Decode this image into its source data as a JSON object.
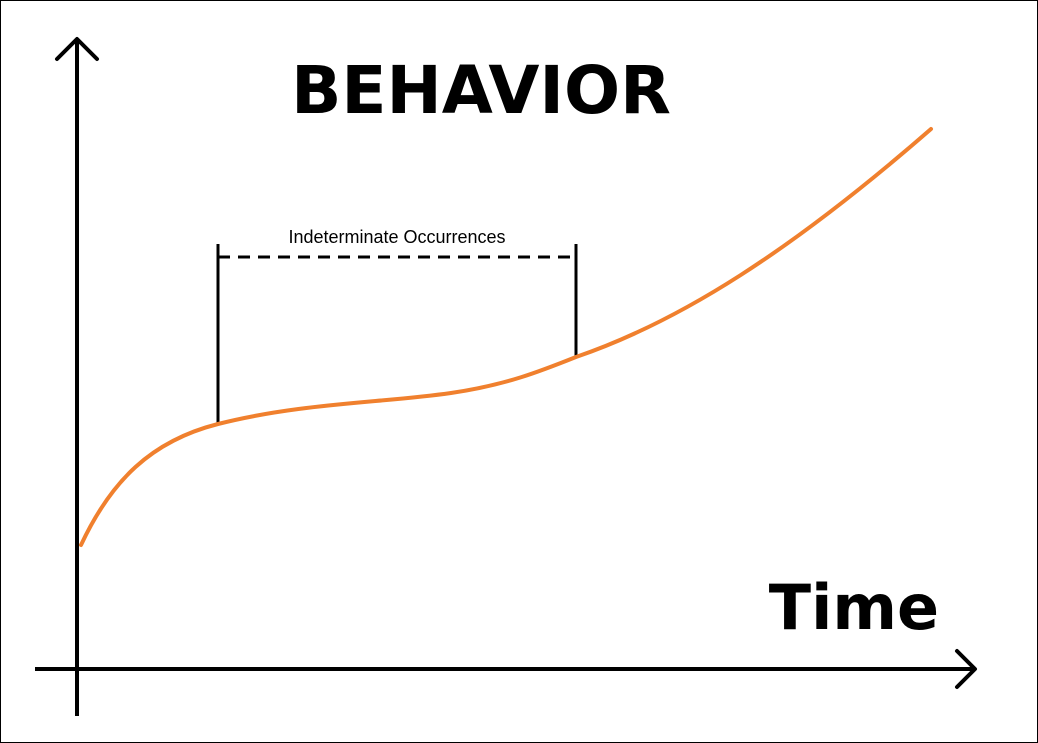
{
  "diagram": {
    "title": "BEHAVIOR",
    "x_axis_label": "Time",
    "annotation": "Indeterminate Occurrences",
    "curve_color": "#f0802e",
    "axis_color": "#000000"
  }
}
